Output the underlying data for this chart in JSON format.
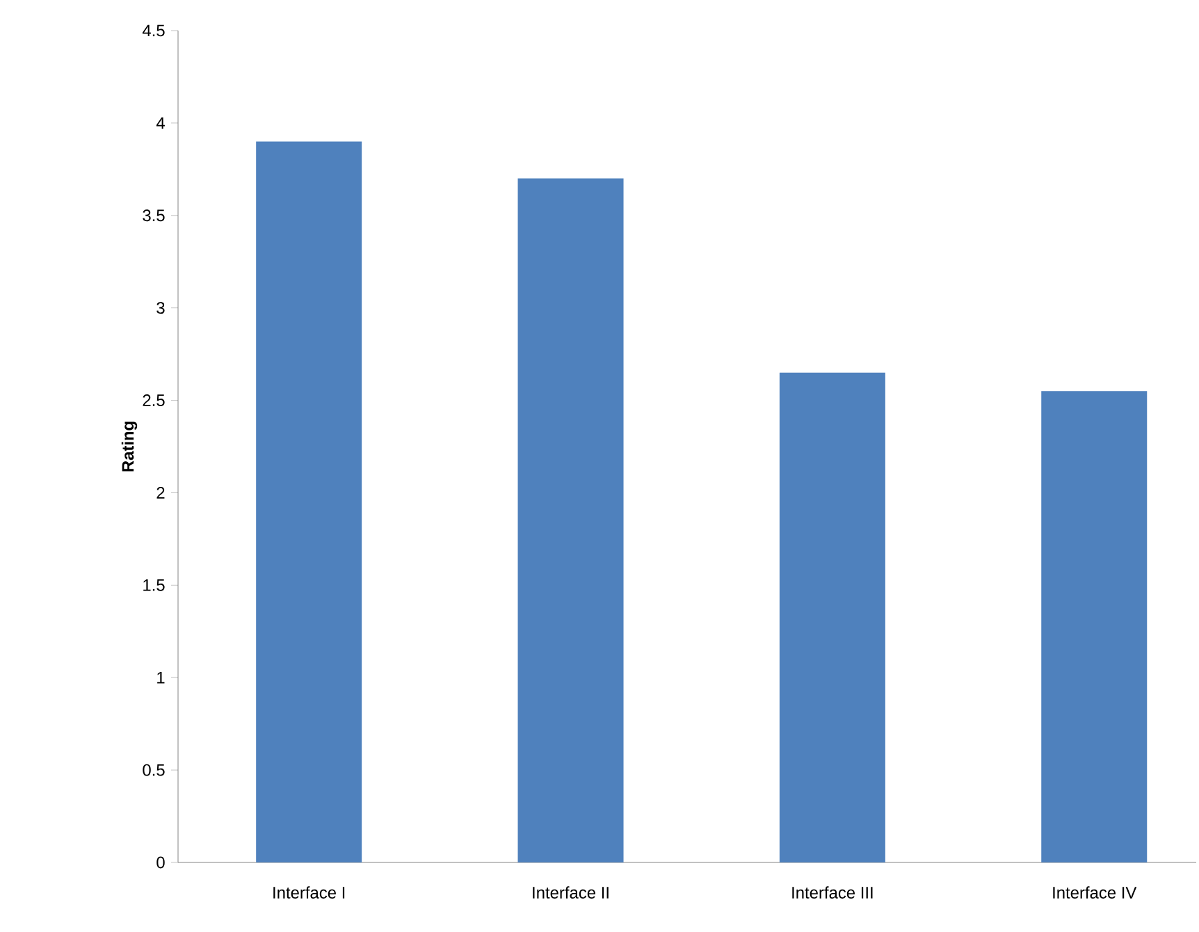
{
  "chart_data": {
    "type": "bar",
    "ylabel": "Rating",
    "categories": [
      "Interface I",
      "Interface II",
      "Interface III",
      "Interface IV"
    ],
    "values": [
      3.9,
      3.7,
      2.65,
      2.55
    ],
    "color": "#4f81bd",
    "ylim": [
      0,
      4.5
    ],
    "yticks": [
      0,
      0.5,
      1,
      1.5,
      2,
      2.5,
      3,
      3.5,
      4,
      4.5
    ],
    "grid": false
  }
}
